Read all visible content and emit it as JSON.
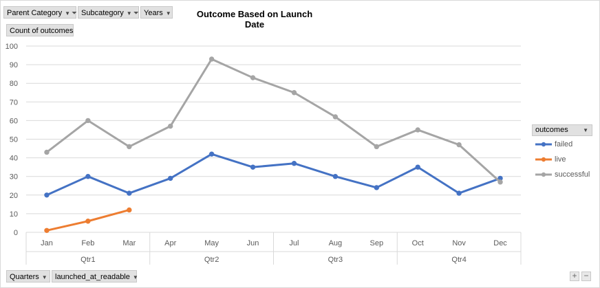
{
  "filters": {
    "parent_category": "Parent Category",
    "subcategory": "Subcategory",
    "years": "Years"
  },
  "value_field": "Count of outcomes",
  "axis_fields": {
    "quarters": "Quarters",
    "launched": "launched_at_readable"
  },
  "legend": {
    "header": "outcomes"
  },
  "colors": {
    "failed": "#4472c4",
    "live": "#ed7d31",
    "successful": "#a5a5a5",
    "grid": "#d9d9d9"
  },
  "icons": {
    "dropdown": "chevron-down-icon",
    "filter": "filter-icon",
    "zoom_in": "plus-icon",
    "zoom_out": "minus-icon"
  },
  "zoom": {
    "plus": "+",
    "minus": "−"
  },
  "chart_data": {
    "type": "line",
    "title": "Outcome Based on Launch Date",
    "xlabel": "",
    "ylabel": "",
    "ylim": [
      0,
      100
    ],
    "yticks": [
      0,
      10,
      20,
      30,
      40,
      50,
      60,
      70,
      80,
      90,
      100
    ],
    "grid": true,
    "legend_position": "right",
    "categories": [
      "Jan",
      "Feb",
      "Mar",
      "Apr",
      "May",
      "Jun",
      "Jul",
      "Aug",
      "Sep",
      "Oct",
      "Nov",
      "Dec"
    ],
    "groups": [
      {
        "label": "Qtr1",
        "start": 0,
        "end": 2
      },
      {
        "label": "Qtr2",
        "start": 3,
        "end": 5
      },
      {
        "label": "Qtr3",
        "start": 6,
        "end": 8
      },
      {
        "label": "Qtr4",
        "start": 9,
        "end": 11
      }
    ],
    "series": [
      {
        "name": "failed",
        "color": "#4472c4",
        "values": [
          20,
          30,
          21,
          29,
          42,
          35,
          37,
          30,
          24,
          35,
          21,
          29
        ]
      },
      {
        "name": "live",
        "color": "#ed7d31",
        "values": [
          1,
          6,
          12,
          null,
          null,
          null,
          null,
          null,
          null,
          null,
          null,
          null
        ]
      },
      {
        "name": "successful",
        "color": "#a5a5a5",
        "values": [
          43,
          60,
          46,
          57,
          93,
          83,
          75,
          62,
          46,
          55,
          47,
          27
        ]
      }
    ]
  }
}
